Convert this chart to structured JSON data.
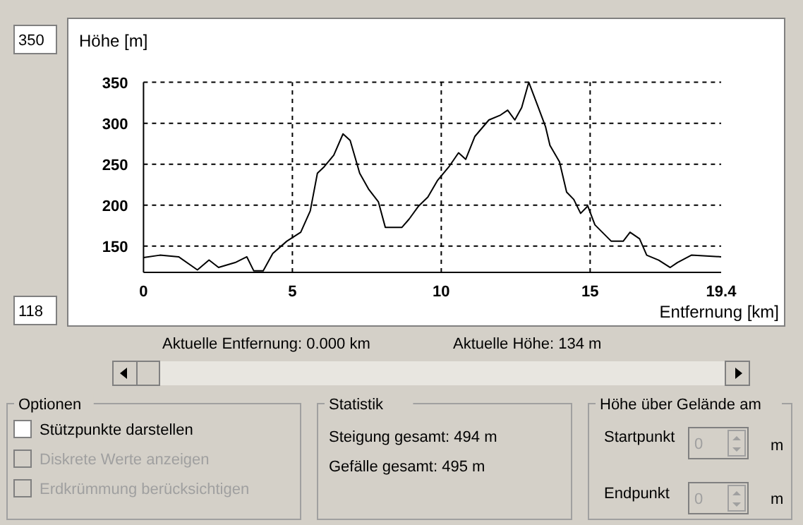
{
  "chart_data": {
    "type": "line",
    "ylabel": "Höhe [m]",
    "xlabel": "Entfernung [km]",
    "x": [
      0,
      0.55,
      1.18,
      1.81,
      2.2,
      2.52,
      3.08,
      3.47,
      3.7,
      4.02,
      4.34,
      4.81,
      5.28,
      5.6,
      5.84,
      6.07,
      6.39,
      6.7,
      6.94,
      7.26,
      7.57,
      7.89,
      8.12,
      8.68,
      8.92,
      9.24,
      9.55,
      9.87,
      10.26,
      10.58,
      10.82,
      11.13,
      11.6,
      11.99,
      12.23,
      12.47,
      12.7,
      12.94,
      13.18,
      13.5,
      13.65,
      13.97,
      14.21,
      14.45,
      14.68,
      14.92,
      15.16,
      15.71,
      16.11,
      16.34,
      16.66,
      16.9,
      17.3,
      17.69,
      17.93,
      18.4,
      19.4
    ],
    "series": [
      {
        "color": "#000000",
        "values": [
          136,
          139,
          137,
          121,
          133,
          124,
          130,
          137,
          120,
          120,
          141,
          156,
          167,
          193,
          239,
          247,
          261,
          287,
          279,
          239,
          219,
          204,
          173,
          173,
          183,
          199,
          210,
          230,
          247,
          264,
          256,
          284,
          304,
          310,
          316,
          304,
          319,
          350,
          327,
          296,
          273,
          253,
          216,
          207,
          190,
          199,
          176,
          156,
          156,
          167,
          159,
          139,
          133,
          124,
          130,
          139,
          137
        ]
      }
    ],
    "xlim": [
      0,
      19.4
    ],
    "ylim": [
      118,
      350
    ],
    "xticks": [
      0,
      5,
      10,
      15,
      19.4
    ],
    "yticks": [
      150,
      200,
      250,
      300,
      350
    ],
    "grid": true,
    "line_style": "solid",
    "marker": "none",
    "annotations": [
      "350",
      "118",
      "Aktuelle Entfernung: 0.000 km",
      "Aktuelle Höhe: 134 m",
      "Optionen",
      "Stützpunkte darstellen",
      "Diskrete Werte anzeigen",
      "Erdkrümmung berücksichtigen",
      "Statistik",
      "Steigung gesamt: 494 m",
      "Gefälle gesamt: 495 m",
      "Höhe über Gelände am",
      "Startpunkt",
      "0",
      "m",
      "Endpunkt",
      "0",
      "m"
    ]
  }
}
